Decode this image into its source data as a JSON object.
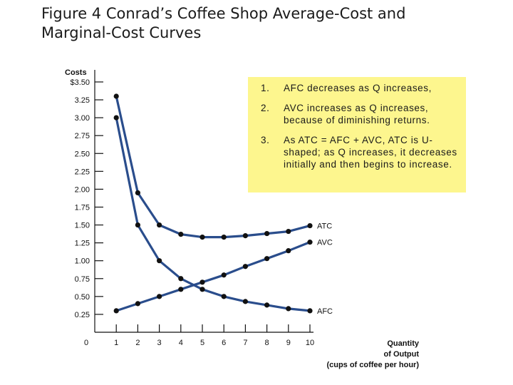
{
  "page": {
    "title": "Figure 4 Conrad’s Coffee Shop Average-Cost and Marginal-Cost Curves"
  },
  "notes": [
    {
      "num": "1.",
      "text": "AFC decreases as Q increases,"
    },
    {
      "num": "2.",
      "text": "AVC increases as Q increases, because of diminishing returns."
    },
    {
      "num": "3.",
      "text": "As ATC = AFC + AVC, ATC is U-shaped; as Q increases, it decreases initially and then begins to increase."
    }
  ],
  "chart_data": {
    "type": "line",
    "ylabel": "Costs",
    "xlabel_lines": [
      "Quantity",
      "of Output",
      "(cups of coffee per hour)"
    ],
    "x_tick_labels": [
      "0",
      "1",
      "2",
      "3",
      "4",
      "5",
      "6",
      "7",
      "8",
      "9",
      "10"
    ],
    "y_ticks": [
      0.25,
      0.5,
      0.75,
      1.0,
      1.25,
      1.5,
      1.75,
      2.0,
      2.25,
      2.5,
      2.75,
      3.0,
      3.25,
      3.5
    ],
    "y_tick_labels": [
      "0.25",
      "0.50",
      "0.75",
      "1.00",
      "1.25",
      "1.50",
      "1.75",
      "2.00",
      "2.25",
      "2.50",
      "2.75",
      "3.00",
      "3.25",
      "$3.50"
    ],
    "xlim": [
      0,
      10
    ],
    "ylim": [
      0,
      3.5
    ],
    "line_color": "#2a4d8c",
    "series": [
      {
        "name": "ATC",
        "x": [
          1,
          2,
          3,
          4,
          5,
          6,
          7,
          8,
          9,
          10
        ],
        "y": [
          3.3,
          1.95,
          1.5,
          1.37,
          1.33,
          1.33,
          1.35,
          1.38,
          1.41,
          1.49
        ]
      },
      {
        "name": "AVC",
        "x": [
          1,
          2,
          3,
          4,
          5,
          6,
          7,
          8,
          9,
          10
        ],
        "y": [
          0.3,
          0.4,
          0.5,
          0.6,
          0.7,
          0.8,
          0.92,
          1.03,
          1.14,
          1.26
        ]
      },
      {
        "name": "AFC",
        "x": [
          1,
          2,
          3,
          4,
          5,
          6,
          7,
          8,
          9,
          10
        ],
        "y": [
          3.0,
          1.5,
          1.0,
          0.75,
          0.6,
          0.5,
          0.43,
          0.38,
          0.33,
          0.3
        ]
      }
    ]
  }
}
